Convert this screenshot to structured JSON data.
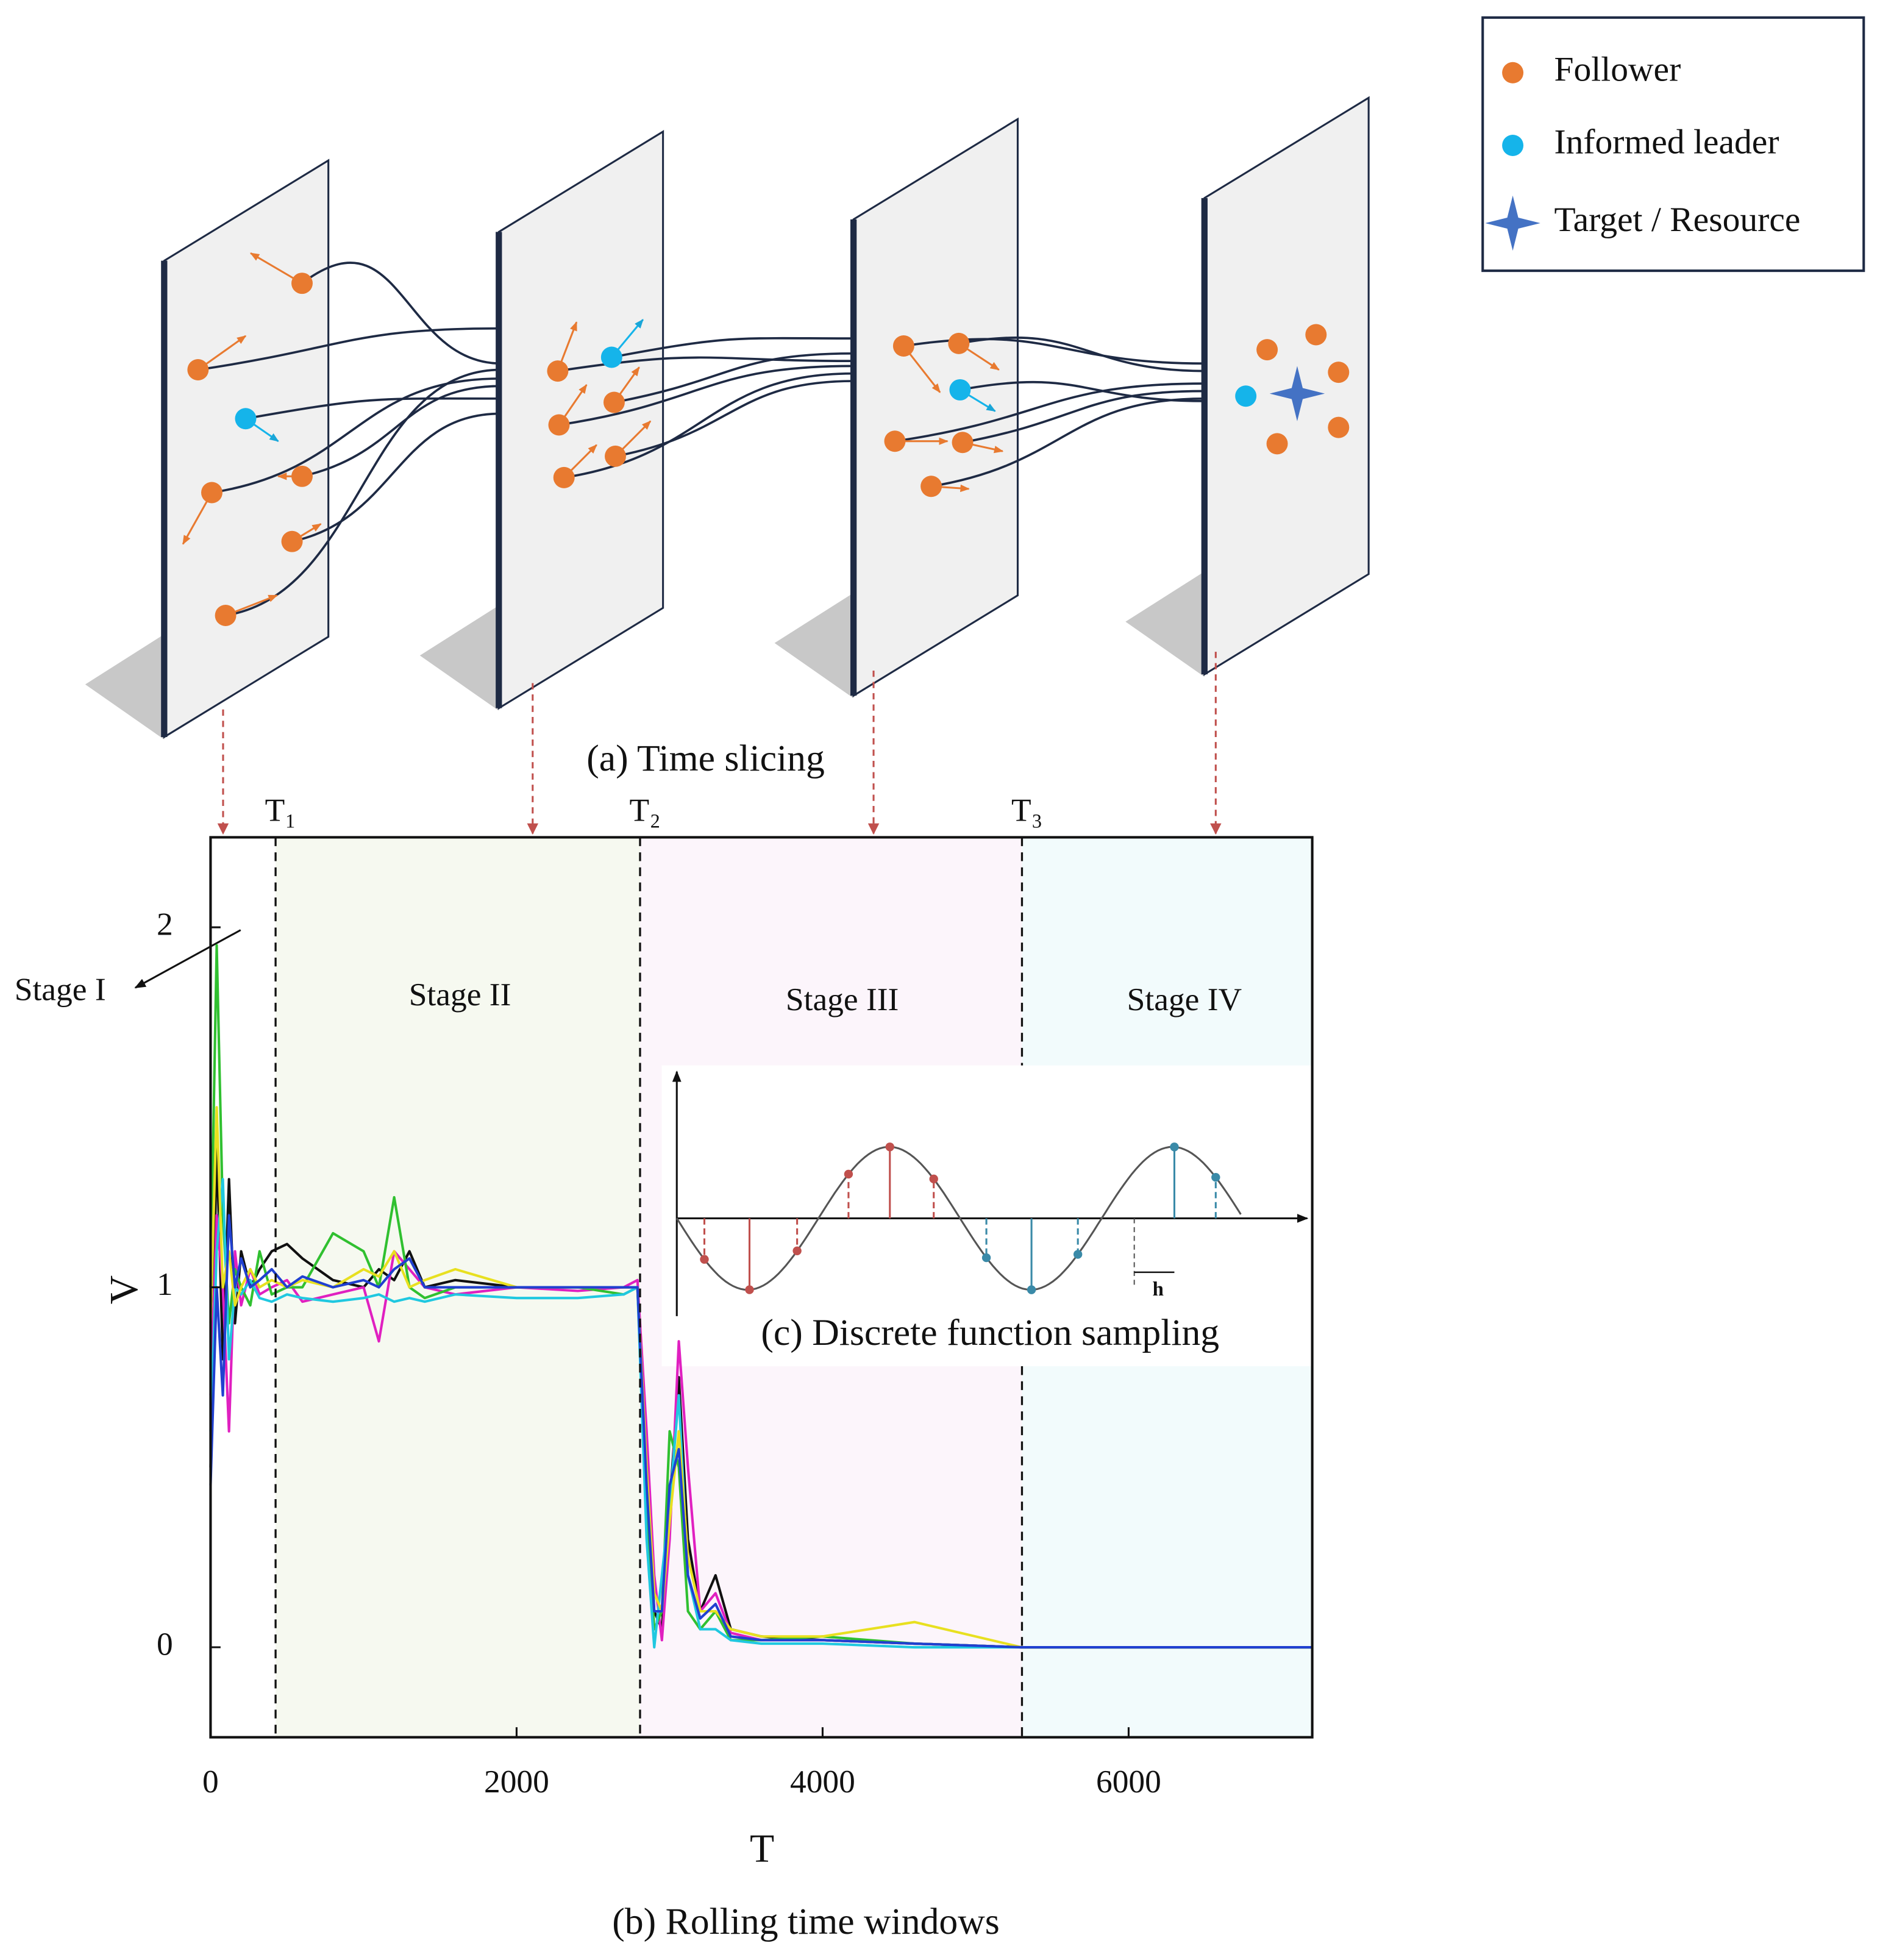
{
  "legend": {
    "items": [
      "Follower",
      "Informed leader",
      "Target / Resource"
    ]
  },
  "captions": {
    "a": "(a)  Time slicing",
    "b": "(b) Rolling time windows",
    "c": "(c)  Discrete function sampling"
  },
  "inset": {
    "h_label": "h"
  },
  "chart_data": {
    "type": "line",
    "xlabel": "T",
    "ylabel": "V",
    "xlim": [
      0,
      7200
    ],
    "ylim": [
      -0.25,
      2.25
    ],
    "xticks": [
      0,
      2000,
      4000,
      6000
    ],
    "yticks": [
      0,
      1,
      2
    ],
    "boundaries": [
      {
        "value": 425,
        "label": "T₁"
      },
      {
        "value": 2807,
        "label": "T₂"
      },
      {
        "value": 5303,
        "label": "T₃"
      }
    ],
    "stages": [
      {
        "name": "Stage I",
        "color": "#ffffff"
      },
      {
        "name": "Stage II",
        "color": "#f6f9f0"
      },
      {
        "name": "Stage III",
        "color": "#fcf5fb"
      },
      {
        "name": "Stage IV",
        "color": "#f2fbfc"
      }
    ],
    "x": [
      0,
      40,
      80,
      120,
      160,
      200,
      260,
      320,
      400,
      500,
      600,
      800,
      1000,
      1100,
      1200,
      1300,
      1400,
      1600,
      2000,
      2400,
      2700,
      2790,
      2850,
      2900,
      2950,
      3000,
      3060,
      3120,
      3200,
      3300,
      3400,
      3600,
      4000,
      4600,
      5300,
      7200
    ],
    "series": [
      {
        "color": "#111111",
        "values": [
          0.5,
          1.4,
          0.8,
          1.3,
          0.9,
          1.1,
          1.0,
          1.05,
          1.1,
          1.12,
          1.08,
          1.02,
          1.0,
          1.05,
          1.02,
          1.1,
          1.0,
          1.02,
          1.0,
          1.0,
          1.0,
          1.0,
          0.5,
          0.1,
          0.05,
          0.4,
          0.75,
          0.3,
          0.1,
          0.2,
          0.05,
          0.03,
          0.02,
          0.01,
          0.0,
          0.0
        ]
      },
      {
        "color": "#e020c0",
        "values": [
          0.7,
          1.2,
          1.0,
          0.6,
          1.1,
          0.95,
          1.05,
          0.98,
          1.0,
          1.02,
          0.96,
          0.98,
          1.0,
          0.85,
          1.1,
          1.05,
          1.0,
          0.98,
          1.0,
          0.99,
          1.0,
          1.02,
          0.6,
          0.2,
          0.02,
          0.3,
          0.85,
          0.5,
          0.1,
          0.15,
          0.04,
          0.02,
          0.02,
          0.01,
          0.0,
          0.0
        ]
      },
      {
        "color": "#30c030",
        "values": [
          1.0,
          1.95,
          1.2,
          0.9,
          1.05,
          1.0,
          0.95,
          1.1,
          0.98,
          1.0,
          1.0,
          1.15,
          1.1,
          1.0,
          1.25,
          1.0,
          0.97,
          1.0,
          1.0,
          1.0,
          0.98,
          1.0,
          0.4,
          0.05,
          0.1,
          0.6,
          0.5,
          0.1,
          0.05,
          0.1,
          0.02,
          0.02,
          0.03,
          0.01,
          0.0,
          0.0
        ]
      },
      {
        "color": "#20c8e0",
        "values": [
          0.6,
          1.1,
          1.3,
          0.8,
          1.0,
          0.98,
          1.02,
          0.97,
          0.96,
          0.98,
          0.97,
          0.96,
          0.97,
          0.98,
          0.96,
          0.97,
          0.96,
          0.98,
          0.97,
          0.97,
          0.98,
          1.0,
          0.3,
          0.0,
          0.2,
          0.4,
          0.7,
          0.2,
          0.05,
          0.05,
          0.02,
          0.01,
          0.01,
          0.0,
          0.0,
          0.0
        ]
      },
      {
        "color": "#e8e020",
        "values": [
          0.9,
          1.5,
          1.0,
          1.1,
          0.95,
          1.0,
          1.05,
          1.0,
          1.02,
          1.0,
          1.02,
          1.0,
          1.05,
          1.03,
          1.1,
          1.0,
          1.02,
          1.05,
          1.0,
          1.0,
          1.0,
          1.0,
          0.5,
          0.15,
          0.1,
          0.35,
          0.6,
          0.25,
          0.1,
          0.1,
          0.05,
          0.03,
          0.03,
          0.07,
          0.0,
          0.0
        ]
      },
      {
        "color": "#2040d0",
        "values": [
          0.45,
          1.0,
          0.7,
          1.2,
          1.0,
          1.08,
          1.0,
          1.02,
          1.05,
          1.0,
          1.03,
          1.0,
          1.02,
          1.0,
          1.05,
          1.08,
          1.0,
          1.0,
          1.0,
          1.0,
          1.0,
          1.0,
          0.45,
          0.1,
          0.1,
          0.45,
          0.55,
          0.2,
          0.08,
          0.12,
          0.03,
          0.02,
          0.02,
          0.01,
          0.0,
          0.0
        ]
      }
    ]
  }
}
